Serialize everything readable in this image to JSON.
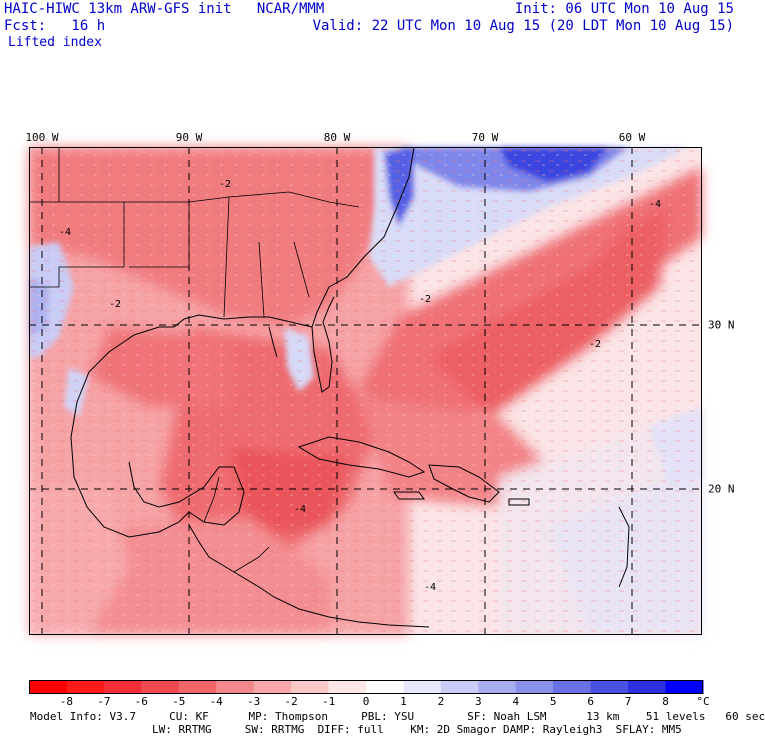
{
  "header": {
    "title": "HAIC-HIWC 13km ARW-GFS init   NCAR/MMM",
    "forecast": "Fcst:   16 h",
    "init": "Init: 06 UTC Mon 10 Aug 15",
    "valid": "Valid: 22 UTC Mon 10 Aug 15 (20 LDT Mon 10 Aug 15)",
    "field_name": "Lifted index"
  },
  "map": {
    "longitude_labels": [
      "100 W",
      "90 W",
      "80 W",
      "70 W",
      "60 W"
    ],
    "latitude_labels": [
      "30 N",
      "20 N"
    ],
    "contour_labels": [
      "-4",
      "-2",
      "-2",
      "-4",
      "-2",
      "-4",
      "-4",
      "-2"
    ],
    "colors": {
      "ocean_neutral": "#fbe3e6",
      "unstable_light": "#f58a8e",
      "unstable_strong": "#e83a40",
      "stable_light": "#c8ccf6",
      "stable_strong": "#2233dd",
      "land_border": "#000000"
    }
  },
  "colorbar": {
    "labels": [
      "-8",
      "-7",
      "-6",
      "-5",
      "-4",
      "-3",
      "-2",
      "-1",
      "0",
      "1",
      "2",
      "3",
      "4",
      "5",
      "6",
      "7",
      "8"
    ],
    "unit": "°C",
    "colors": [
      "#ff0000",
      "#ff1a1a",
      "#f52f35",
      "#ef4a4f",
      "#f2666a",
      "#f5888a",
      "#f8a8aa",
      "#fbc8c8",
      "#fde6e6",
      "#ffffff",
      "#e8e8fc",
      "#c8ccf6",
      "#a8acf0",
      "#8a90eb",
      "#6a70e6",
      "#4a50e2",
      "#2a30de",
      "#0000ff"
    ]
  },
  "model_info": {
    "line1": "Model Info: V3.7     CU: KF      MP: Thompson     PBL: YSU        SF: Noah LSM      13 km    51 levels   60 sec",
    "line2": "LW: RRTMG     SW: RRTMG  DIFF: full    KM: 2D Smagor DAMP: Rayleigh3  SFLAY: MM5"
  }
}
